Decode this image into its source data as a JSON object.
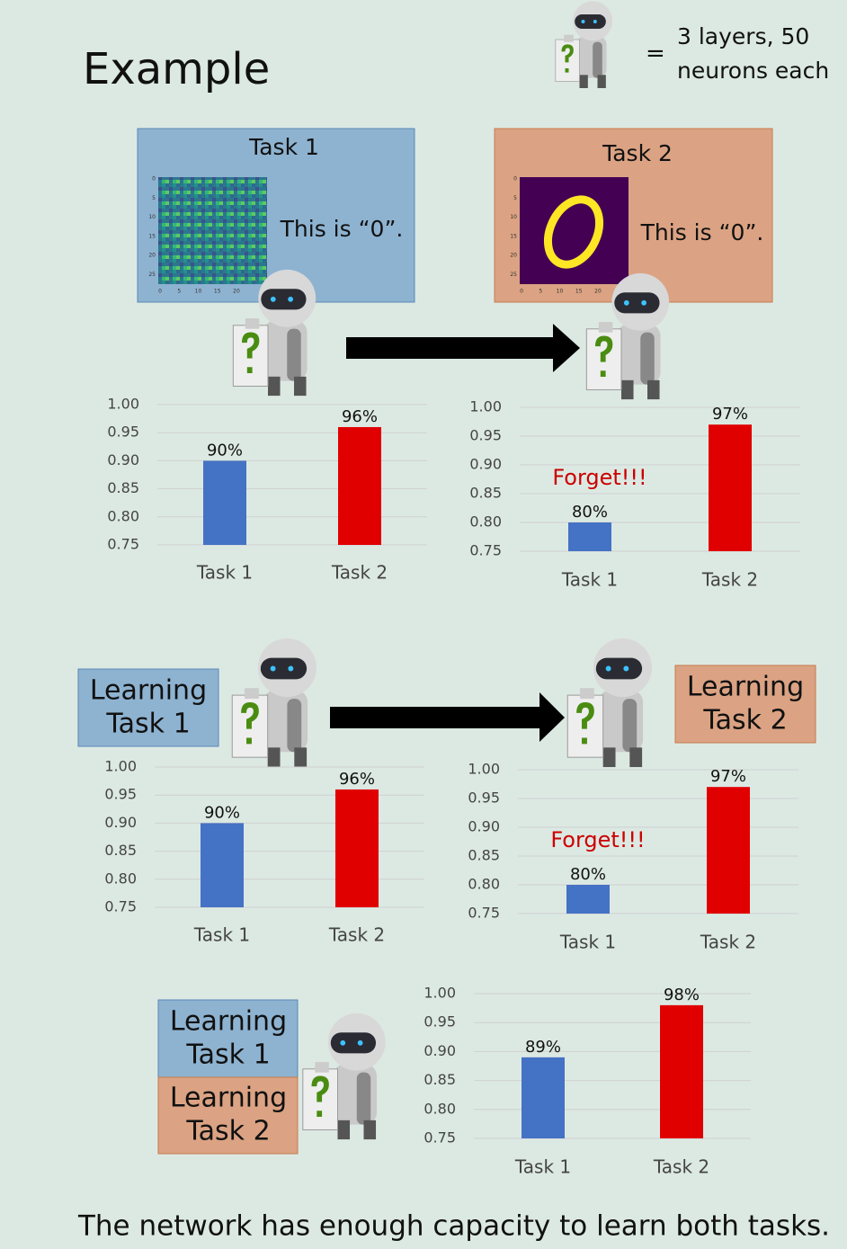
{
  "title": "Example",
  "legend": {
    "equals": "=",
    "lines": [
      "3 layers, 50",
      "neurons each"
    ]
  },
  "panels": [
    {
      "title": "Task 1",
      "caption": "This is “0”.",
      "xticks": [
        0,
        5,
        10,
        15,
        20
      ],
      "yticks": [
        0,
        5,
        10,
        15,
        20,
        25
      ]
    },
    {
      "title": "Task 2",
      "caption": "This is “0”.",
      "xticks": [
        0,
        5,
        10,
        15,
        20
      ],
      "yticks": [
        0,
        5,
        10,
        15,
        20,
        25
      ]
    }
  ],
  "boxes": [
    {
      "lines": [
        "Learning",
        "Task 1"
      ]
    },
    {
      "lines": [
        "Learning",
        "Task 2"
      ]
    },
    {
      "lines": [
        "Learning",
        "Task 1"
      ]
    },
    {
      "lines": [
        "Learning",
        "Task 2"
      ]
    }
  ],
  "chart_data": [
    {
      "type": "bar",
      "categories": [
        "Task 1",
        "Task 2"
      ],
      "values": [
        0.9,
        0.96
      ],
      "value_labels": [
        "90%",
        "96%"
      ],
      "colors": [
        "#4472c4",
        "#e00000"
      ],
      "ylim": [
        0.75,
        1.0
      ],
      "yticks": [
        {
          "value": 1.0,
          "label": "1.00"
        },
        0.95,
        {
          "value": 0.9,
          "label": "0.90"
        },
        0.85,
        {
          "value": 0.8,
          "label": "0.80"
        },
        0.75
      ],
      "grid": true
    },
    {
      "type": "bar",
      "categories": [
        "Task 1",
        "Task 2"
      ],
      "values": [
        0.8,
        0.97
      ],
      "value_labels": [
        "80%",
        "97%"
      ],
      "colors": [
        "#4472c4",
        "#e00000"
      ],
      "annotation": "Forget!!!",
      "ylim": [
        0.75,
        1.0
      ],
      "yticks": [
        {
          "value": 1.0,
          "label": "1.00"
        },
        0.95,
        {
          "value": 0.9,
          "label": "0.90"
        },
        0.85,
        {
          "value": 0.8,
          "label": "0.80"
        },
        0.75
      ],
      "grid": true
    },
    {
      "type": "bar",
      "categories": [
        "Task 1",
        "Task 2"
      ],
      "values": [
        0.9,
        0.96
      ],
      "value_labels": [
        "90%",
        "96%"
      ],
      "colors": [
        "#4472c4",
        "#e00000"
      ],
      "ylim": [
        0.75,
        1.0
      ],
      "yticks": [
        {
          "value": 1.0,
          "label": "1.00"
        },
        0.95,
        {
          "value": 0.9,
          "label": "0.90"
        },
        0.85,
        {
          "value": 0.8,
          "label": "0.80"
        },
        0.75
      ],
      "grid": true
    },
    {
      "type": "bar",
      "categories": [
        "Task 1",
        "Task 2"
      ],
      "values": [
        0.8,
        0.97
      ],
      "value_labels": [
        "80%",
        "97%"
      ],
      "colors": [
        "#4472c4",
        "#e00000"
      ],
      "annotation": "Forget!!!",
      "ylim": [
        0.75,
        1.0
      ],
      "yticks": [
        {
          "value": 1.0,
          "label": "1.00"
        },
        0.95,
        {
          "value": 0.9,
          "label": "0.90"
        },
        0.85,
        {
          "value": 0.8,
          "label": "0.80"
        },
        0.75
      ],
      "grid": true
    },
    {
      "type": "bar",
      "categories": [
        "Task 1",
        "Task 2"
      ],
      "values": [
        0.89,
        0.98
      ],
      "value_labels": [
        "89%",
        "98%"
      ],
      "colors": [
        "#4472c4",
        "#e00000"
      ],
      "ylim": [
        0.75,
        1.0
      ],
      "yticks": [
        {
          "value": 1.0,
          "label": "1.00"
        },
        0.95,
        {
          "value": 0.9,
          "label": "0.90"
        },
        0.85,
        {
          "value": 0.8,
          "label": "0.80"
        },
        0.75
      ],
      "grid": true
    }
  ],
  "footer": "The network has enough capacity to learn both tasks."
}
